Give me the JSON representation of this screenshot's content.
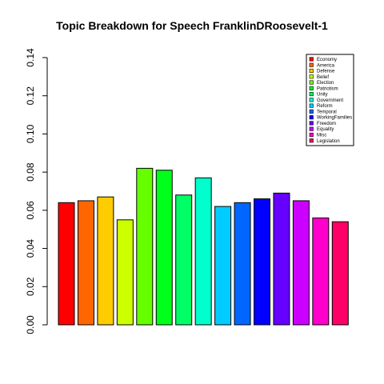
{
  "chart_data": {
    "type": "bar",
    "title": "Topic Breakdown for Speech FranklinDRoosevelt-1",
    "xlabel": "",
    "ylabel": "",
    "ylim": [
      0,
      0.14
    ],
    "yticks": [
      "0.00",
      "0.02",
      "0.04",
      "0.06",
      "0.08",
      "0.10",
      "0.12",
      "0.14"
    ],
    "categories": [
      "Economy",
      "America",
      "Defense",
      "Belief",
      "Election",
      "Patriotism",
      "Unity",
      "Government",
      "Reform",
      "Temporal",
      "WorkingFamilies",
      "Freedom",
      "Equality",
      "Misc",
      "Legislation"
    ],
    "values": [
      0.064,
      0.065,
      0.067,
      0.055,
      0.082,
      0.081,
      0.068,
      0.077,
      0.062,
      0.064,
      0.066,
      0.069,
      0.065,
      0.056,
      0.054
    ],
    "colors": [
      "#FF0000",
      "#FF6600",
      "#FFCC00",
      "#CCFF00",
      "#66FF00",
      "#00FF1A",
      "#00FF66",
      "#00FFCC",
      "#00CCFF",
      "#0066FF",
      "#0000FF",
      "#6600FF",
      "#CC00FF",
      "#FF00CC",
      "#FF0066"
    ],
    "legend_position": "top-right",
    "grid": false
  }
}
